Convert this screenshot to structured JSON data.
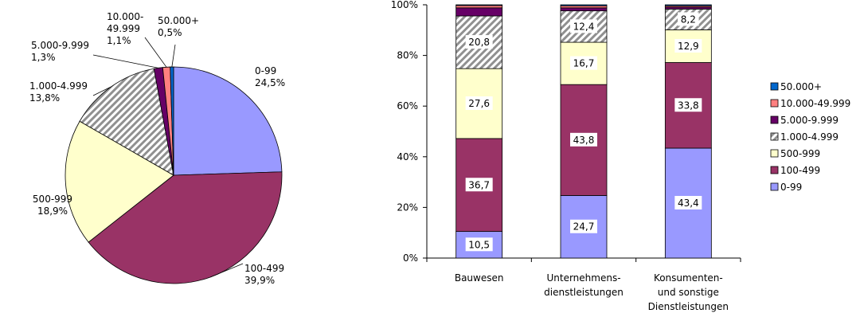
{
  "chart_data": [
    {
      "type": "pie",
      "slices": [
        {
          "label": "0-99",
          "value": 24.5,
          "value_label": "24,5%",
          "color": "#9999FF",
          "pattern": ""
        },
        {
          "label": "100-499",
          "value": 39.9,
          "value_label": "39,9%",
          "color": "#993366",
          "pattern": ""
        },
        {
          "label": "500-999",
          "value": 18.9,
          "value_label": "18,9%",
          "color": "#FFFFCC",
          "pattern": ""
        },
        {
          "label": "1.000-4.999",
          "value": 13.8,
          "value_label": "13,8%",
          "color": "#C0C0C0",
          "pattern": "diagonal-hatch"
        },
        {
          "label": "5.000-9.999",
          "value": 1.3,
          "value_label": "1,3%",
          "color": "#660066",
          "pattern": ""
        },
        {
          "label": "10.000-\n49.999",
          "value": 1.1,
          "value_label": "1,1%",
          "color": "#FF8080",
          "pattern": ""
        },
        {
          "label": "50.000+",
          "value": 0.5,
          "value_label": "0,5%",
          "color": "#0066CC",
          "pattern": ""
        }
      ]
    },
    {
      "type": "bar",
      "stacked": true,
      "categories": [
        "Bauwesen",
        "Unternehmens-\ndienstleistungen",
        "Konsumenten-\nund sonstige\nDienstleistungen"
      ],
      "ylim": [
        0,
        100
      ],
      "yticks": [
        "0%",
        "20%",
        "40%",
        "60%",
        "80%",
        "100%"
      ],
      "legend_position": "right",
      "series": [
        {
          "name": "0-99",
          "color": "#9999FF",
          "pattern": "",
          "values": [
            10.5,
            24.7,
            43.4
          ],
          "labels": [
            "10,5",
            "24,7",
            "43,4"
          ]
        },
        {
          "name": "100-499",
          "color": "#993366",
          "pattern": "",
          "values": [
            36.7,
            43.8,
            33.8
          ],
          "labels": [
            "36,7",
            "43,8",
            "33,8"
          ]
        },
        {
          "name": "500-999",
          "color": "#FFFFCC",
          "pattern": "",
          "values": [
            27.6,
            16.7,
            12.9
          ],
          "labels": [
            "27,6",
            "16,7",
            "12,9"
          ]
        },
        {
          "name": "1.000-4.999",
          "color": "#C0C0C0",
          "pattern": "diagonal-hatch",
          "values": [
            20.8,
            12.4,
            8.2
          ],
          "labels": [
            "20,8",
            "12,4",
            "8,2"
          ]
        },
        {
          "name": "5.000-9.999",
          "color": "#660066",
          "pattern": "",
          "values": [
            3.2,
            1.2,
            0.8
          ],
          "labels": [
            "",
            "",
            ""
          ]
        },
        {
          "name": "10.000-49.999",
          "color": "#FF8080",
          "pattern": "",
          "values": [
            0.9,
            0.8,
            0.5
          ],
          "labels": [
            "",
            "",
            ""
          ]
        },
        {
          "name": "50.000+",
          "color": "#0066CC",
          "pattern": "",
          "values": [
            0.3,
            0.4,
            0.4
          ],
          "labels": [
            "",
            "",
            ""
          ]
        }
      ]
    }
  ]
}
